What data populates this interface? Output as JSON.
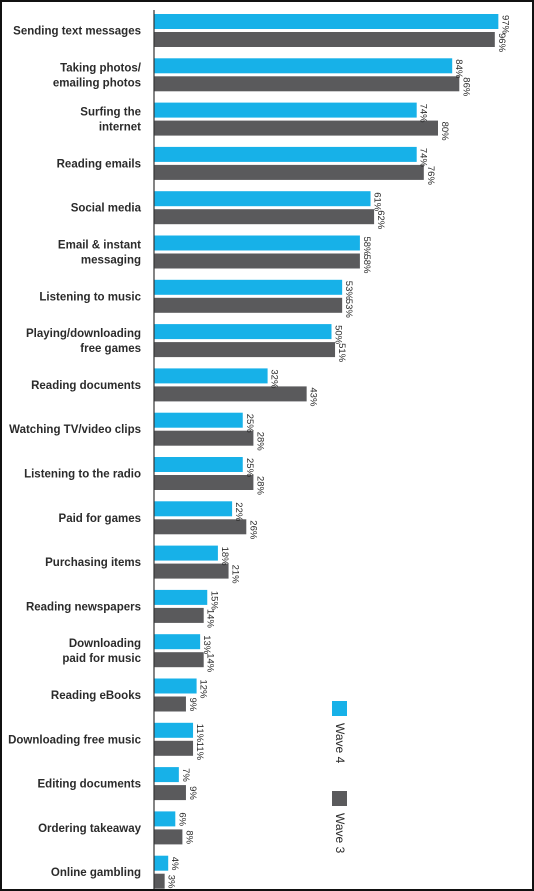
{
  "colors": {
    "wave4": "#17b1e8",
    "wave3": "#5a5a5c",
    "axis": "#333333",
    "text": "#2b2b2b"
  },
  "chart_data": {
    "type": "bar",
    "orientation": "horizontal",
    "categories": [
      [
        "Sending text messages"
      ],
      [
        "Taking photos/",
        "emailing photos"
      ],
      [
        "Surfing the",
        "internet"
      ],
      [
        "Reading emails"
      ],
      [
        "Social media"
      ],
      [
        "Email & instant",
        "messaging"
      ],
      [
        "Listening to music"
      ],
      [
        "Playing/downloading",
        "free games"
      ],
      [
        "Reading documents"
      ],
      [
        "Watching TV/video clips"
      ],
      [
        "Listening to the radio"
      ],
      [
        "Paid for games"
      ],
      [
        "Purchasing items"
      ],
      [
        "Reading newspapers"
      ],
      [
        "Downloading",
        "paid for music"
      ],
      [
        "Reading eBooks"
      ],
      [
        "Downloading free music"
      ],
      [
        "Editing documents"
      ],
      [
        "Ordering takeaway"
      ],
      [
        "Online gambling"
      ]
    ],
    "series": [
      {
        "name": "Wave 4",
        "values": [
          97,
          84,
          74,
          74,
          61,
          58,
          53,
          50,
          32,
          25,
          25,
          22,
          18,
          15,
          13,
          12,
          11,
          7,
          6,
          4
        ]
      },
      {
        "name": "Wave 3",
        "values": [
          96,
          86,
          80,
          76,
          62,
          58,
          53,
          51,
          43,
          28,
          28,
          26,
          21,
          14,
          14,
          9,
          11,
          9,
          8,
          3
        ]
      }
    ],
    "value_suffix": "%",
    "xlim": [
      0,
      100
    ],
    "legend_position": "right"
  }
}
